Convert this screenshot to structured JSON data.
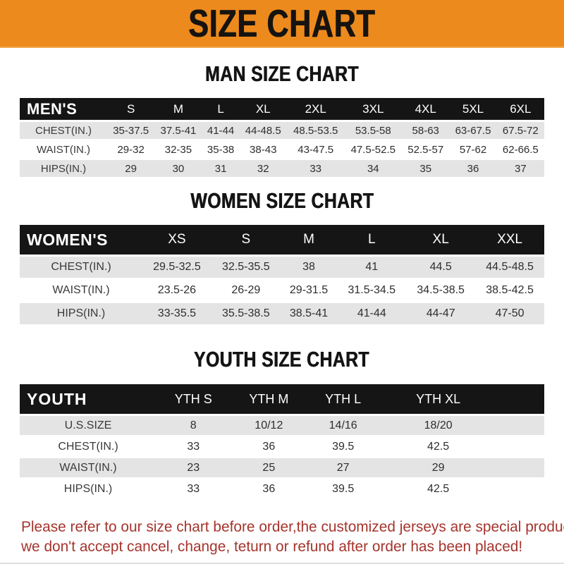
{
  "banner": {
    "title": "SIZE CHART"
  },
  "sections": [
    {
      "title": "MAN SIZE CHART",
      "header_label": "MEN'S",
      "columns": [
        "S",
        "M",
        "L",
        "XL",
        "2XL",
        "3XL",
        "4XL",
        "5XL",
        "6XL"
      ],
      "rows": [
        {
          "label": "CHEST(IN.)",
          "values": [
            "35-37.5",
            "37.5-41",
            "41-44",
            "44-48.5",
            "48.5-53.5",
            "53.5-58",
            "58-63",
            "63-67.5",
            "67.5-72"
          ]
        },
        {
          "label": "WAIST(IN.)",
          "values": [
            "29-32",
            "32-35",
            "35-38",
            "38-43",
            "43-47.5",
            "47.5-52.5",
            "52.5-57",
            "57-62",
            "62-66.5"
          ]
        },
        {
          "label": "HIPS(IN.)",
          "values": [
            "29",
            "30",
            "31",
            "32",
            "33",
            "34",
            "35",
            "36",
            "37"
          ]
        }
      ]
    },
    {
      "title": "WOMEN SIZE CHART",
      "header_label": "WOMEN'S",
      "columns": [
        "XS",
        "S",
        "M",
        "L",
        "XL",
        "XXL"
      ],
      "rows": [
        {
          "label": "CHEST(IN.)",
          "values": [
            "29.5-32.5",
            "32.5-35.5",
            "38",
            "41",
            "44.5",
            "44.5-48.5"
          ]
        },
        {
          "label": "WAIST(IN.)",
          "values": [
            "23.5-26",
            "26-29",
            "29-31.5",
            "31.5-34.5",
            "34.5-38.5",
            "38.5-42.5"
          ]
        },
        {
          "label": "HIPS(IN.)",
          "values": [
            "33-35.5",
            "35.5-38.5",
            "38.5-41",
            "41-44",
            "44-47",
            "47-50"
          ]
        }
      ]
    },
    {
      "title": "YOUTH SIZE CHART",
      "header_label": "YOUTH",
      "columns": [
        "YTH S",
        "YTH M",
        "YTH L",
        "YTH XL"
      ],
      "rows": [
        {
          "label": "U.S.SIZE",
          "values": [
            "8",
            "10/12",
            "14/16",
            "18/20"
          ]
        },
        {
          "label": "CHEST(IN.)",
          "values": [
            "33",
            "36",
            "39.5",
            "42.5"
          ]
        },
        {
          "label": "WAIST(IN.)",
          "values": [
            "23",
            "25",
            "27",
            "29"
          ]
        },
        {
          "label": "HIPS(IN.)",
          "values": [
            "33",
            "36",
            "39.5",
            "42.5"
          ]
        }
      ]
    }
  ],
  "footer": {
    "line1": "Please refer to our size chart before order,the customized jerseys are special products,",
    "line2": "we don't accept cancel, change, teturn or refund after order has been placed!"
  },
  "colors": {
    "banner_orange": "#ED8A1D",
    "header_black": "#151515",
    "row_gray": "#E4E4E4",
    "note_red": "#A5342C"
  }
}
